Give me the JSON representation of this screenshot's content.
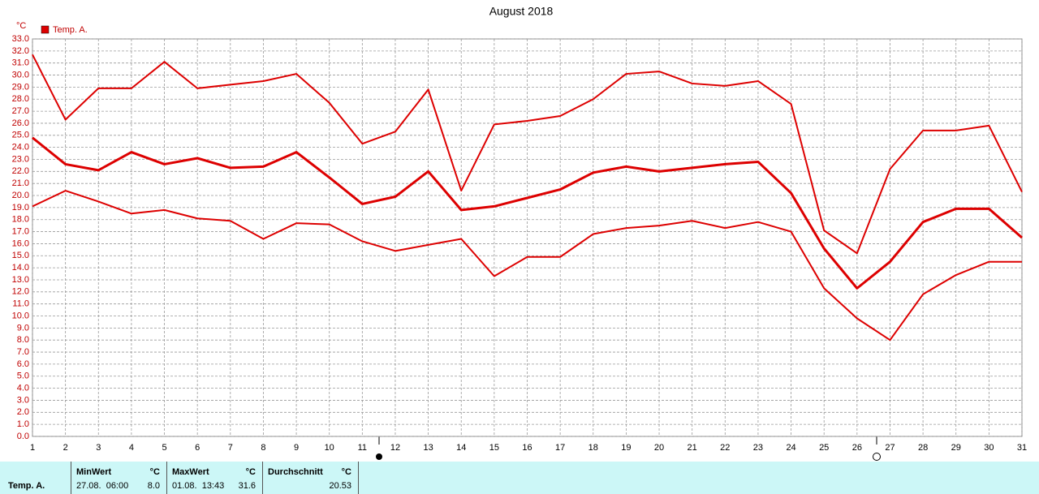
{
  "chart_data": {
    "type": "line",
    "title": "August 2018",
    "y_unit": "°C",
    "legend": "Temp. A.",
    "legend_color": "#dd0000",
    "x": [
      1,
      2,
      3,
      4,
      5,
      6,
      7,
      8,
      9,
      10,
      11,
      12,
      13,
      14,
      15,
      16,
      17,
      18,
      19,
      20,
      21,
      22,
      23,
      24,
      25,
      26,
      27,
      28,
      29,
      30,
      31
    ],
    "xlim": [
      1,
      31
    ],
    "xticks": [
      1,
      2,
      3,
      4,
      5,
      6,
      7,
      8,
      9,
      10,
      11,
      12,
      13,
      14,
      15,
      16,
      17,
      18,
      19,
      20,
      21,
      22,
      23,
      24,
      25,
      26,
      27,
      28,
      29,
      30,
      31
    ],
    "ylim": [
      0,
      33
    ],
    "yticks": [
      {
        "value": 0,
        "label": "0.0"
      },
      {
        "value": 1,
        "label": "1.0"
      },
      {
        "value": 2,
        "label": "2.0"
      },
      {
        "value": 3,
        "label": "3.0"
      },
      {
        "value": 4,
        "label": "4.0"
      },
      {
        "value": 5,
        "label": "5.0"
      },
      {
        "value": 6,
        "label": "6.0"
      },
      {
        "value": 7,
        "label": "7.0"
      },
      {
        "value": 8,
        "label": "8.0"
      },
      {
        "value": 9,
        "label": "9.0"
      },
      {
        "value": 10,
        "label": "10.0"
      },
      {
        "value": 11,
        "label": "11.0"
      },
      {
        "value": 12,
        "label": "12.0"
      },
      {
        "value": 13,
        "label": "13.0"
      },
      {
        "value": 14,
        "label": "14.0"
      },
      {
        "value": 15,
        "label": "15.0"
      },
      {
        "value": 16,
        "label": "16.0"
      },
      {
        "value": 17,
        "label": "17.0"
      },
      {
        "value": 18,
        "label": "18.0"
      },
      {
        "value": 19,
        "label": "19.0"
      },
      {
        "value": 20,
        "label": "20.0"
      },
      {
        "value": 21,
        "label": "21.0"
      },
      {
        "value": 22,
        "label": "22.0"
      },
      {
        "value": 23,
        "label": "23.0"
      },
      {
        "value": 24,
        "label": "24.0"
      },
      {
        "value": 25,
        "label": "25.0"
      },
      {
        "value": 26,
        "label": "26.0"
      },
      {
        "value": 27,
        "label": "27.0"
      },
      {
        "value": 28,
        "label": "28.0"
      },
      {
        "value": 29,
        "label": "29.0"
      },
      {
        "value": 30,
        "label": "30.0"
      },
      {
        "value": 31,
        "label": "31.0"
      },
      {
        "value": 32,
        "label": "32.0"
      },
      {
        "value": 33,
        "label": "33.0"
      }
    ],
    "grid": true,
    "series": [
      {
        "color": "#dd0000",
        "width": 2,
        "values": [
          31.7,
          26.3,
          28.9,
          28.9,
          31.1,
          28.9,
          29.2,
          29.5,
          30.1,
          27.7,
          24.3,
          25.3,
          28.8,
          20.4,
          25.9,
          26.2,
          26.6,
          28.0,
          30.1,
          30.3,
          29.3,
          29.1,
          29.5,
          27.6,
          17.1,
          15.2,
          22.2,
          25.4,
          25.4,
          25.8,
          20.3
        ]
      },
      {
        "color": "#dd0000",
        "width": 3,
        "values": [
          24.8,
          22.6,
          22.1,
          23.6,
          22.6,
          23.1,
          22.3,
          22.4,
          23.6,
          21.5,
          19.3,
          19.9,
          22.0,
          18.8,
          19.1,
          19.8,
          20.5,
          21.9,
          22.4,
          22.0,
          22.3,
          22.6,
          22.8,
          20.2,
          15.6,
          12.3,
          14.5,
          17.8,
          18.9,
          18.9,
          16.5
        ]
      },
      {
        "color": "#dd0000",
        "width": 2,
        "values": [
          19.1,
          20.4,
          19.5,
          18.5,
          18.8,
          18.1,
          17.9,
          16.4,
          17.7,
          17.6,
          16.2,
          15.4,
          15.9,
          16.4,
          13.3,
          14.9,
          14.9,
          16.8,
          17.3,
          17.5,
          17.9,
          17.3,
          17.8,
          17.0,
          12.3,
          9.8,
          8.0,
          11.8,
          13.4,
          14.5,
          14.5
        ]
      }
    ]
  },
  "summary": {
    "label": "Temp. A.",
    "columns": [
      {
        "header": "MinWert",
        "unit": "°C",
        "when": "27.08.  06:00",
        "value": "8.0"
      },
      {
        "header": "MaxWert",
        "unit": "°C",
        "when": "01.08.  13:43",
        "value": "31.6"
      },
      {
        "header": "Durchschnitt",
        "unit": "°C",
        "value": "20.53"
      }
    ]
  }
}
